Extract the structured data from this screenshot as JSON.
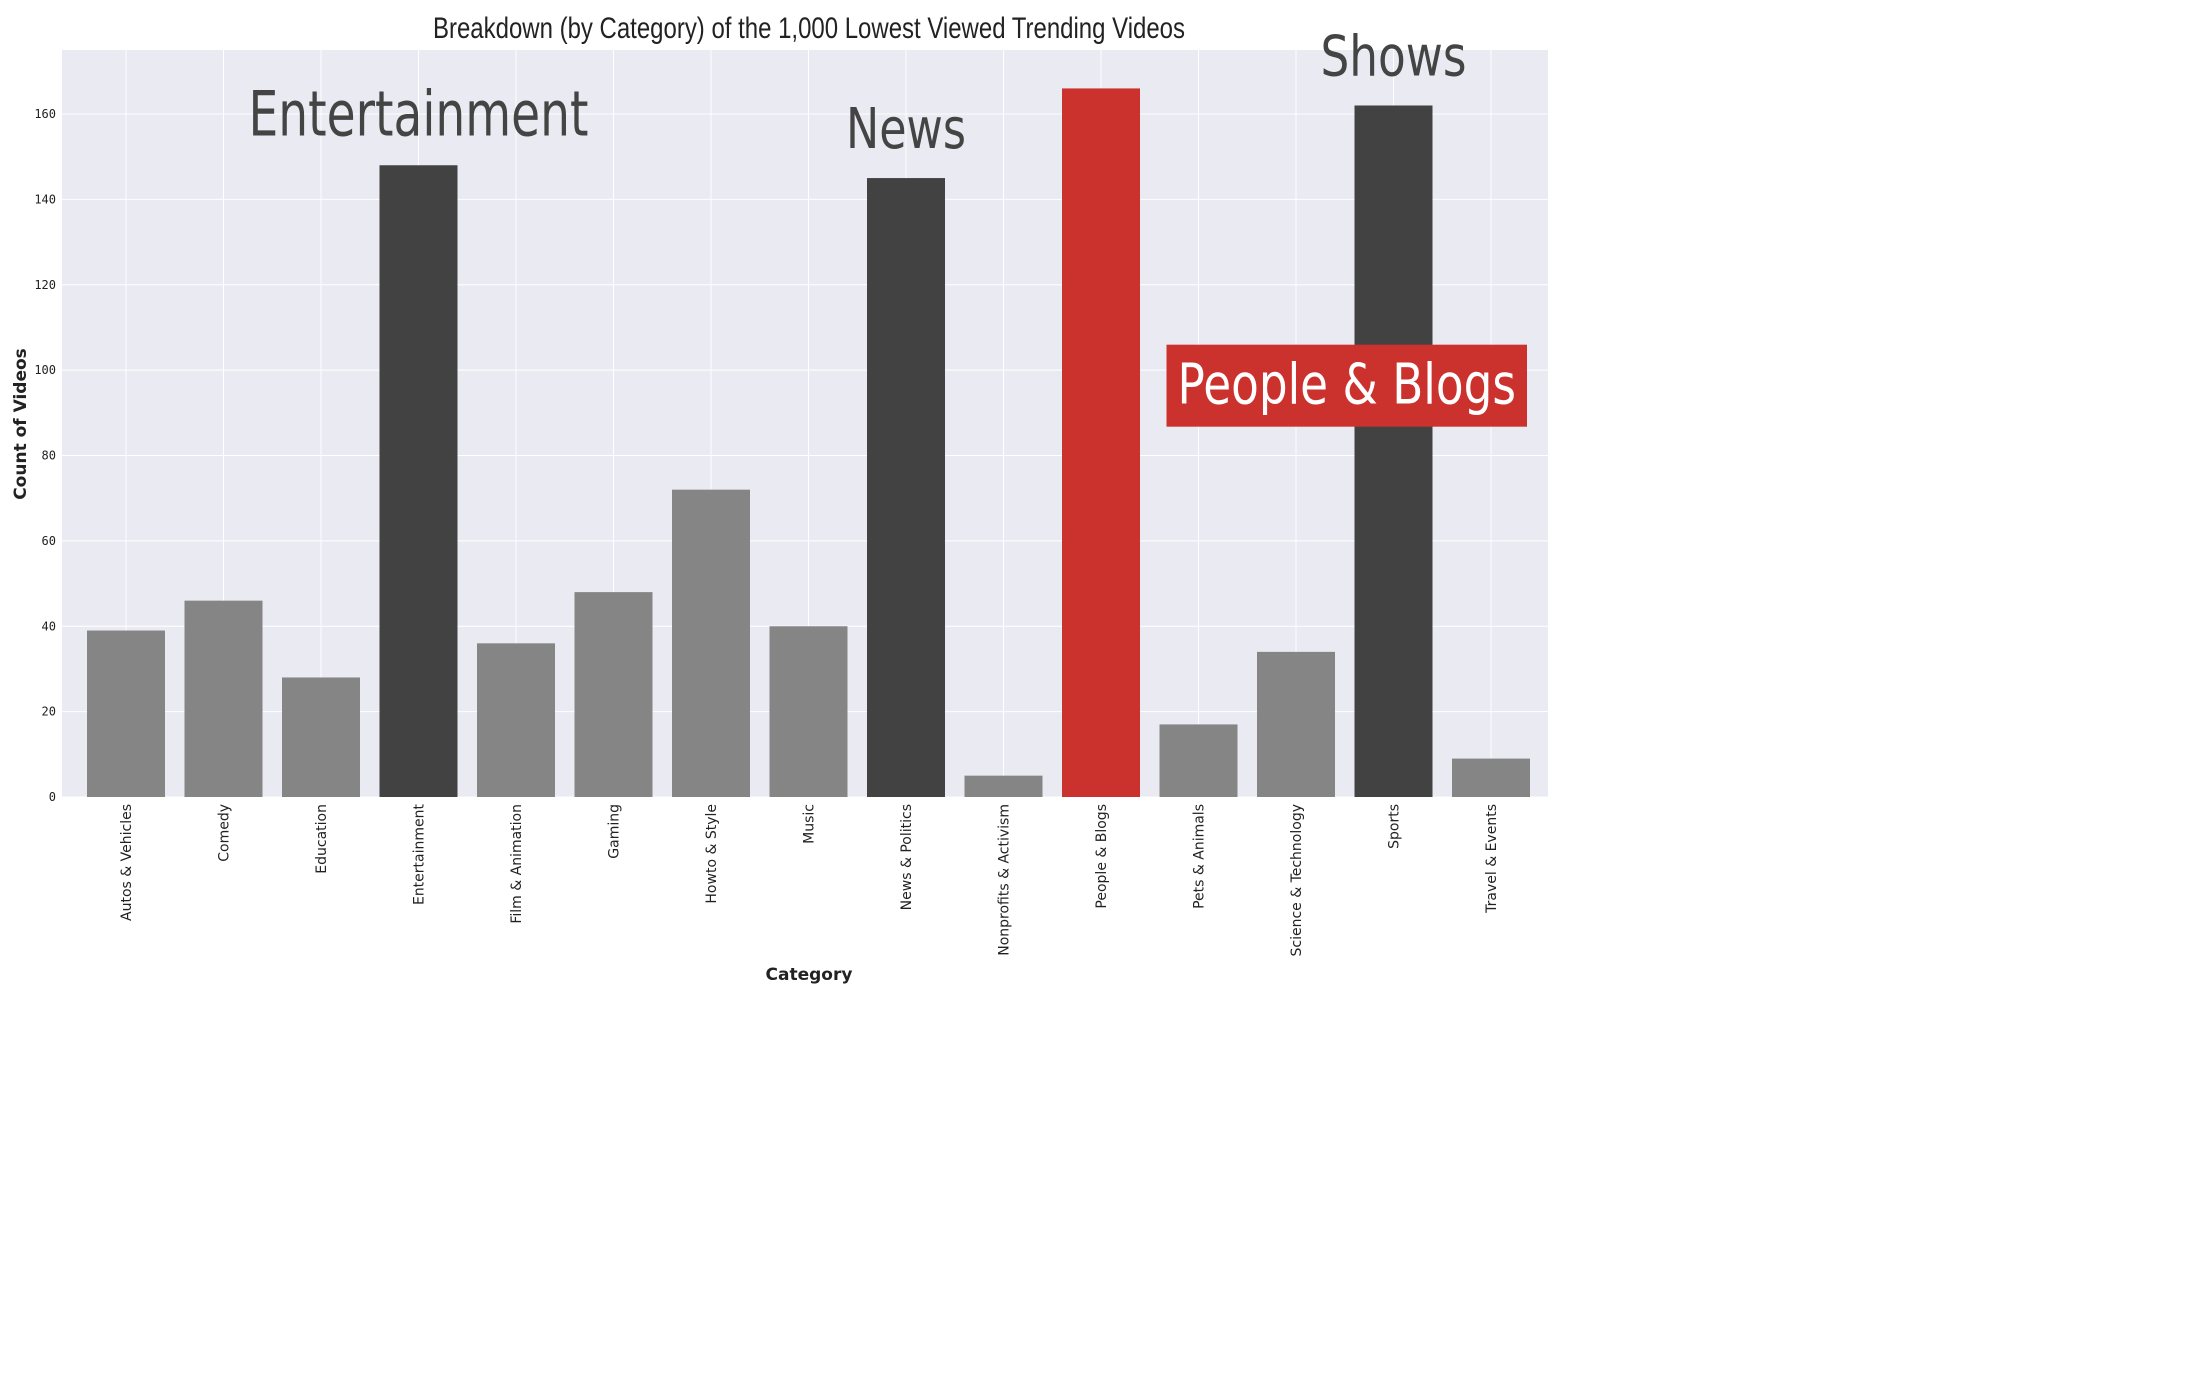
{
  "chart_data": {
    "type": "bar",
    "title": "Breakdown (by Category) of the 1,000 Lowest Viewed Trending Videos",
    "xlabel": "Category",
    "ylabel": "Count of Videos",
    "ylim": [
      0,
      175
    ],
    "yticks": [
      0,
      20,
      40,
      60,
      80,
      100,
      120,
      140,
      160
    ],
    "grid": true,
    "categories": [
      "Autos & Vehicles",
      "Comedy",
      "Education",
      "Entertainment",
      "Film & Animation",
      "Gaming",
      "Howto & Style",
      "Music",
      "News & Politics",
      "Nonprofits & Activism",
      "People & Blogs",
      "Pets & Animals",
      "Science & Technology",
      "Sports",
      "Travel & Events"
    ],
    "values": [
      39,
      46,
      28,
      148,
      36,
      48,
      72,
      40,
      145,
      5,
      166,
      17,
      34,
      162,
      9
    ],
    "bar_colors": [
      "#858585",
      "#858585",
      "#858585",
      "#424242",
      "#858585",
      "#858585",
      "#858585",
      "#858585",
      "#424242",
      "#858585",
      "#cb322d",
      "#858585",
      "#858585",
      "#424242",
      "#858585"
    ],
    "colors": {
      "background": "#eaeaf2",
      "grid": "#ffffff",
      "muted": "#858585",
      "dark": "#424242",
      "highlight": "#cb322d"
    },
    "annotations": [
      {
        "text": "Entertainment",
        "category": "Entertainment",
        "y": 155,
        "style": "dark",
        "size": "large"
      },
      {
        "text": "News",
        "category": "News & Politics",
        "y": 152,
        "style": "dark",
        "size": "medium"
      },
      {
        "text": "Shows",
        "category": "Sports",
        "y": 169,
        "style": "dark",
        "size": "medium"
      },
      {
        "text": "People & Blogs",
        "x_between": [
          "Pets & Animals",
          "Travel & Events"
        ],
        "y": 98,
        "style": "boxed-highlight",
        "size": "medium"
      }
    ]
  }
}
